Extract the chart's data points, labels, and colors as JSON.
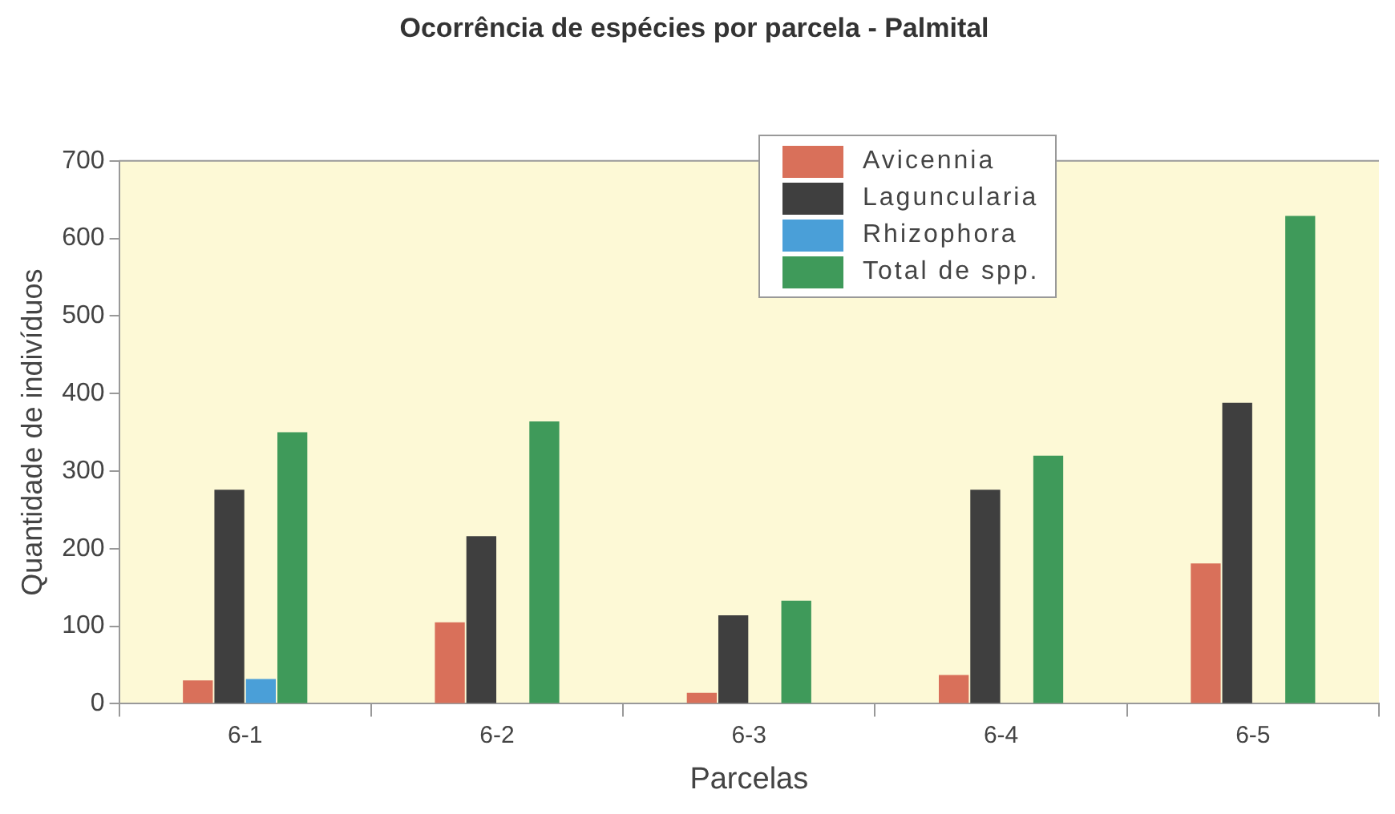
{
  "chart_data": {
    "type": "bar",
    "title": "Ocorrência de espécies por parcela - Palmital",
    "xlabel": "Parcelas",
    "ylabel": "Quantidade de indivíduos",
    "categories": [
      "6-1",
      "6-2",
      "6-3",
      "6-4",
      "6-5"
    ],
    "series": [
      {
        "name": "Avicennia",
        "color": "#d9705a",
        "values": [
          30,
          105,
          14,
          37,
          181
        ]
      },
      {
        "name": "Laguncularia",
        "color": "#3f3f3f",
        "values": [
          276,
          216,
          114,
          276,
          388
        ]
      },
      {
        "name": "Rhizophora",
        "color": "#4a9fd8",
        "values": [
          32,
          0,
          0,
          0,
          0
        ]
      },
      {
        "name": "Total de spp.",
        "color": "#3f9a5a",
        "values": [
          350,
          364,
          133,
          320,
          629
        ]
      }
    ],
    "ylim": [
      0,
      700
    ],
    "yticks": [
      0,
      100,
      200,
      300,
      400,
      500,
      600,
      700
    ],
    "grid": false,
    "legend": "top"
  }
}
